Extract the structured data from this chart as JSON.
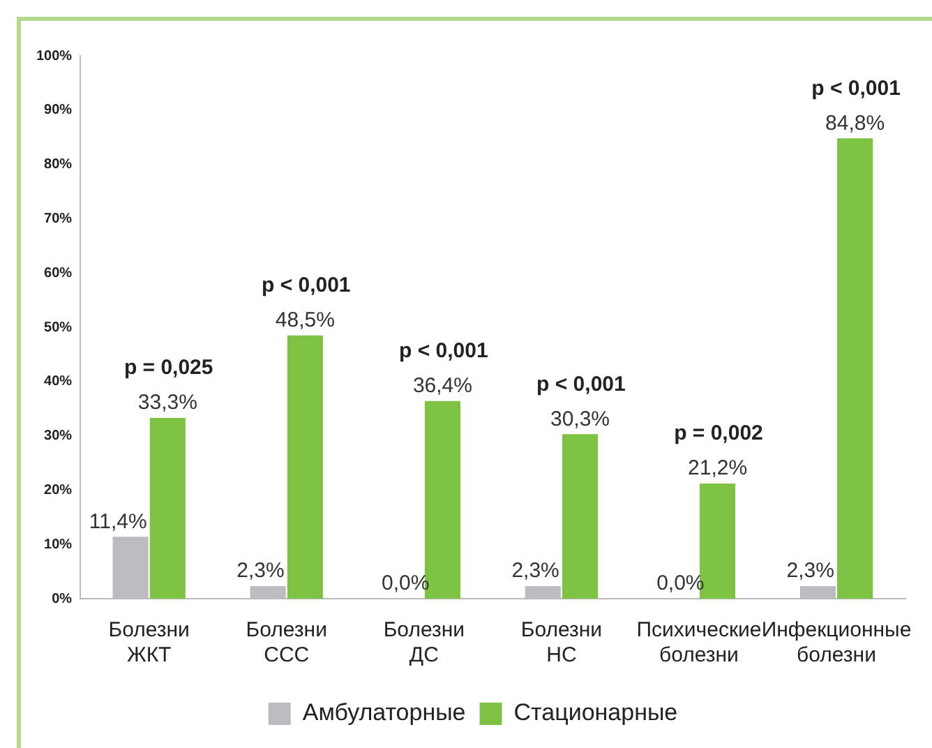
{
  "chart_data": {
    "type": "bar",
    "categories": [
      "Болезни ЖКТ",
      "Болезни ССС",
      "Болезни ДС",
      "Болезни НС",
      "Психические болезни",
      "Инфекционные болезни"
    ],
    "series": [
      {
        "name": "Амбулаторные",
        "color": "#bcbcc0",
        "values": [
          11.4,
          2.3,
          0.0,
          2.3,
          0.0,
          2.3
        ],
        "value_labels": [
          "11,4%",
          "2,3%",
          "0,0%",
          "2,3%",
          "0,0%",
          "2,3%"
        ]
      },
      {
        "name": "Стационарные",
        "color": "#7dc242",
        "values": [
          33.3,
          48.5,
          36.4,
          30.3,
          21.2,
          84.8
        ],
        "value_labels": [
          "33,3%",
          "48,5%",
          "36,4%",
          "30,3%",
          "21,2%",
          "84,8%"
        ]
      }
    ],
    "ylim": [
      0,
      100
    ],
    "yticks": [
      {
        "value": 0,
        "label": "0%"
      },
      {
        "value": 10,
        "label": "10%"
      },
      {
        "value": 20,
        "label": "20%"
      },
      {
        "value": 30,
        "label": "30%"
      },
      {
        "value": 40,
        "label": "40%"
      },
      {
        "value": 50,
        "label": "50%"
      },
      {
        "value": 60,
        "label": "60%"
      },
      {
        "value": 70,
        "label": "70%"
      },
      {
        "value": 80,
        "label": "80%"
      },
      {
        "value": 90,
        "label": "90%"
      },
      {
        "value": 100,
        "label": "100%"
      }
    ],
    "annotations": [
      "p = 0,025",
      "p < 0,001",
      "p < 0,001",
      "p < 0,001",
      "p = 0,002",
      "p < 0,001"
    ],
    "grid": false,
    "legend": "bottom"
  }
}
